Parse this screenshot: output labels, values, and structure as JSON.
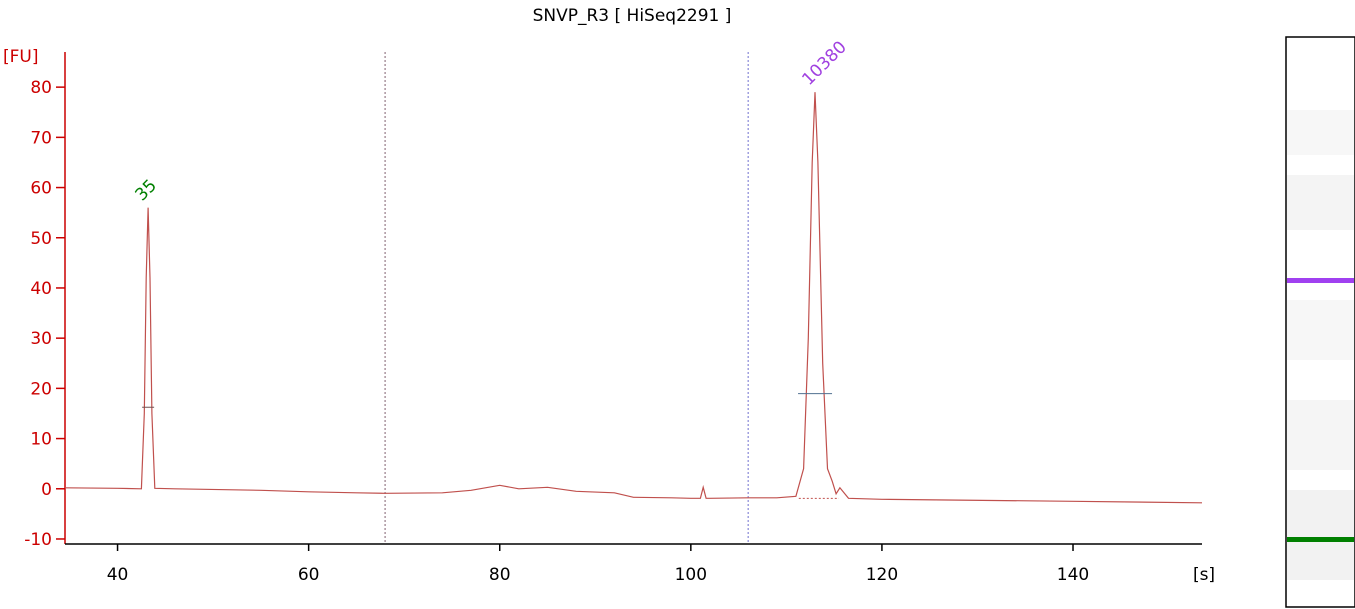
{
  "chart_data": {
    "type": "line",
    "title": "SNVP_R3  [ HiSeq2291 ]",
    "ylabel": "[FU]",
    "xlabel": "[s]",
    "xlim": [
      34.5,
      153.5
    ],
    "ylim": [
      -11,
      87
    ],
    "x_ticks": [
      40,
      60,
      80,
      100,
      120,
      140
    ],
    "y_ticks": [
      -10,
      0,
      10,
      20,
      30,
      40,
      50,
      60,
      70,
      80
    ],
    "region_markers": [
      68,
      106
    ],
    "peaks": [
      {
        "label": "35",
        "time": 43.2,
        "height": 56,
        "color": "#008000"
      },
      {
        "label": "10380",
        "time": 113.0,
        "height": 79,
        "color": "#a040e0"
      }
    ],
    "series": [
      {
        "color": "#c0504d",
        "x": [
          34.5,
          40,
          42.5,
          42.8,
          43.0,
          43.2,
          43.4,
          43.6,
          43.9,
          46,
          55,
          60,
          65,
          68,
          74,
          77,
          80,
          82,
          85,
          88,
          92,
          94,
          98,
          100,
          101,
          101.3,
          101.6,
          102,
          106,
          109,
          111,
          111.8,
          112.3,
          112.7,
          113.0,
          113.3,
          113.8,
          114.3,
          114.8,
          115.2,
          115.6,
          116.5,
          120,
          140,
          153.5
        ],
        "y": [
          0.2,
          0.1,
          0.0,
          15,
          42,
          56,
          42,
          15,
          0.1,
          0.0,
          -0.3,
          -0.6,
          -0.8,
          -0.9,
          -0.8,
          -0.3,
          0.7,
          0.0,
          0.3,
          -0.5,
          -0.8,
          -1.7,
          -1.8,
          -1.9,
          -1.9,
          0.3,
          -1.9,
          -1.9,
          -1.8,
          -1.8,
          -1.5,
          4,
          30,
          65,
          79,
          65,
          25,
          4,
          1.5,
          -1.0,
          0.2,
          -1.9,
          -2.1,
          -2.5,
          -2.8
        ]
      }
    ],
    "gel_bands": [
      {
        "name": "upper marker",
        "color": "#a040f0"
      },
      {
        "name": "lower marker",
        "color": "#008000"
      }
    ]
  }
}
